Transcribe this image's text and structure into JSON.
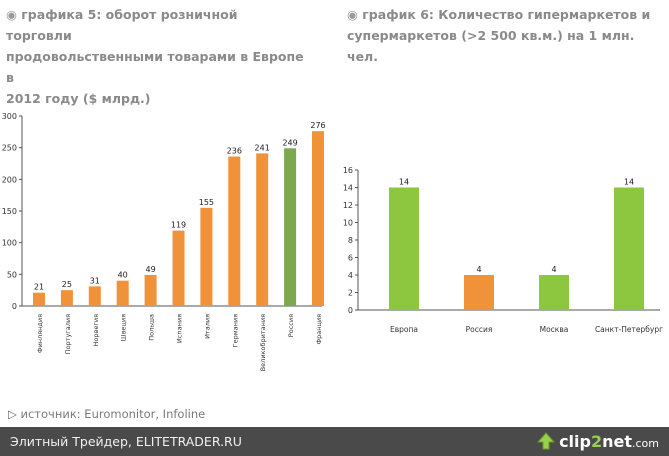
{
  "chart_data": [
    {
      "type": "bar",
      "title": [
        "графика 5: оборот розничной торговли",
        "продовольственными товарами в Европе в",
        "2012 году ($ млрд.)"
      ],
      "title_bullet": "◉",
      "title_prefix": "графика 5: оборот розничной торговли",
      "categories": [
        "Финляндия",
        "Португалия",
        "Норвегия",
        "Швеция",
        "Польша",
        "Испания",
        "Италия",
        "Германия",
        "Великобритания",
        "Россия",
        "Франция"
      ],
      "values": [
        21,
        25,
        31,
        40,
        49,
        119,
        155,
        236,
        241,
        249,
        276
      ],
      "bar_colors": [
        "#f0923a",
        "#f0923a",
        "#f0923a",
        "#f0923a",
        "#f0923a",
        "#f0923a",
        "#f0923a",
        "#f0923a",
        "#f0923a",
        "#7ea84f",
        "#f0923a"
      ],
      "yticks": [
        "0",
        "50",
        "100",
        "150",
        "200",
        "250",
        "300"
      ],
      "ylim": [
        0,
        300
      ]
    },
    {
      "type": "bar",
      "title": [
        "график 6: Количество гипермаркетов и",
        "супермаркетов (>2 500 кв.м.) на 1 млн. чел."
      ],
      "title_bullet": "◉",
      "categories": [
        "Европа",
        "Россия",
        "Москва",
        "Санкт-Петербург"
      ],
      "values": [
        14,
        4,
        4,
        14
      ],
      "bar_colors": [
        "#8dc63f",
        "#f0923a",
        "#8dc63f",
        "#8dc63f"
      ],
      "yticks": [
        "0",
        "2",
        "4",
        "6",
        "8",
        "10",
        "12",
        "14",
        "16"
      ],
      "ylim": [
        0,
        16
      ]
    }
  ],
  "source": {
    "arrow": "▷",
    "text": "источник: Euromonitor, Infoline"
  },
  "footer": {
    "text": "Элитный Трейдер, ELITETRADER.RU",
    "brand": "clip",
    "brand_num": "2",
    "brand_tail": "net",
    "brand_dom": ".com"
  }
}
